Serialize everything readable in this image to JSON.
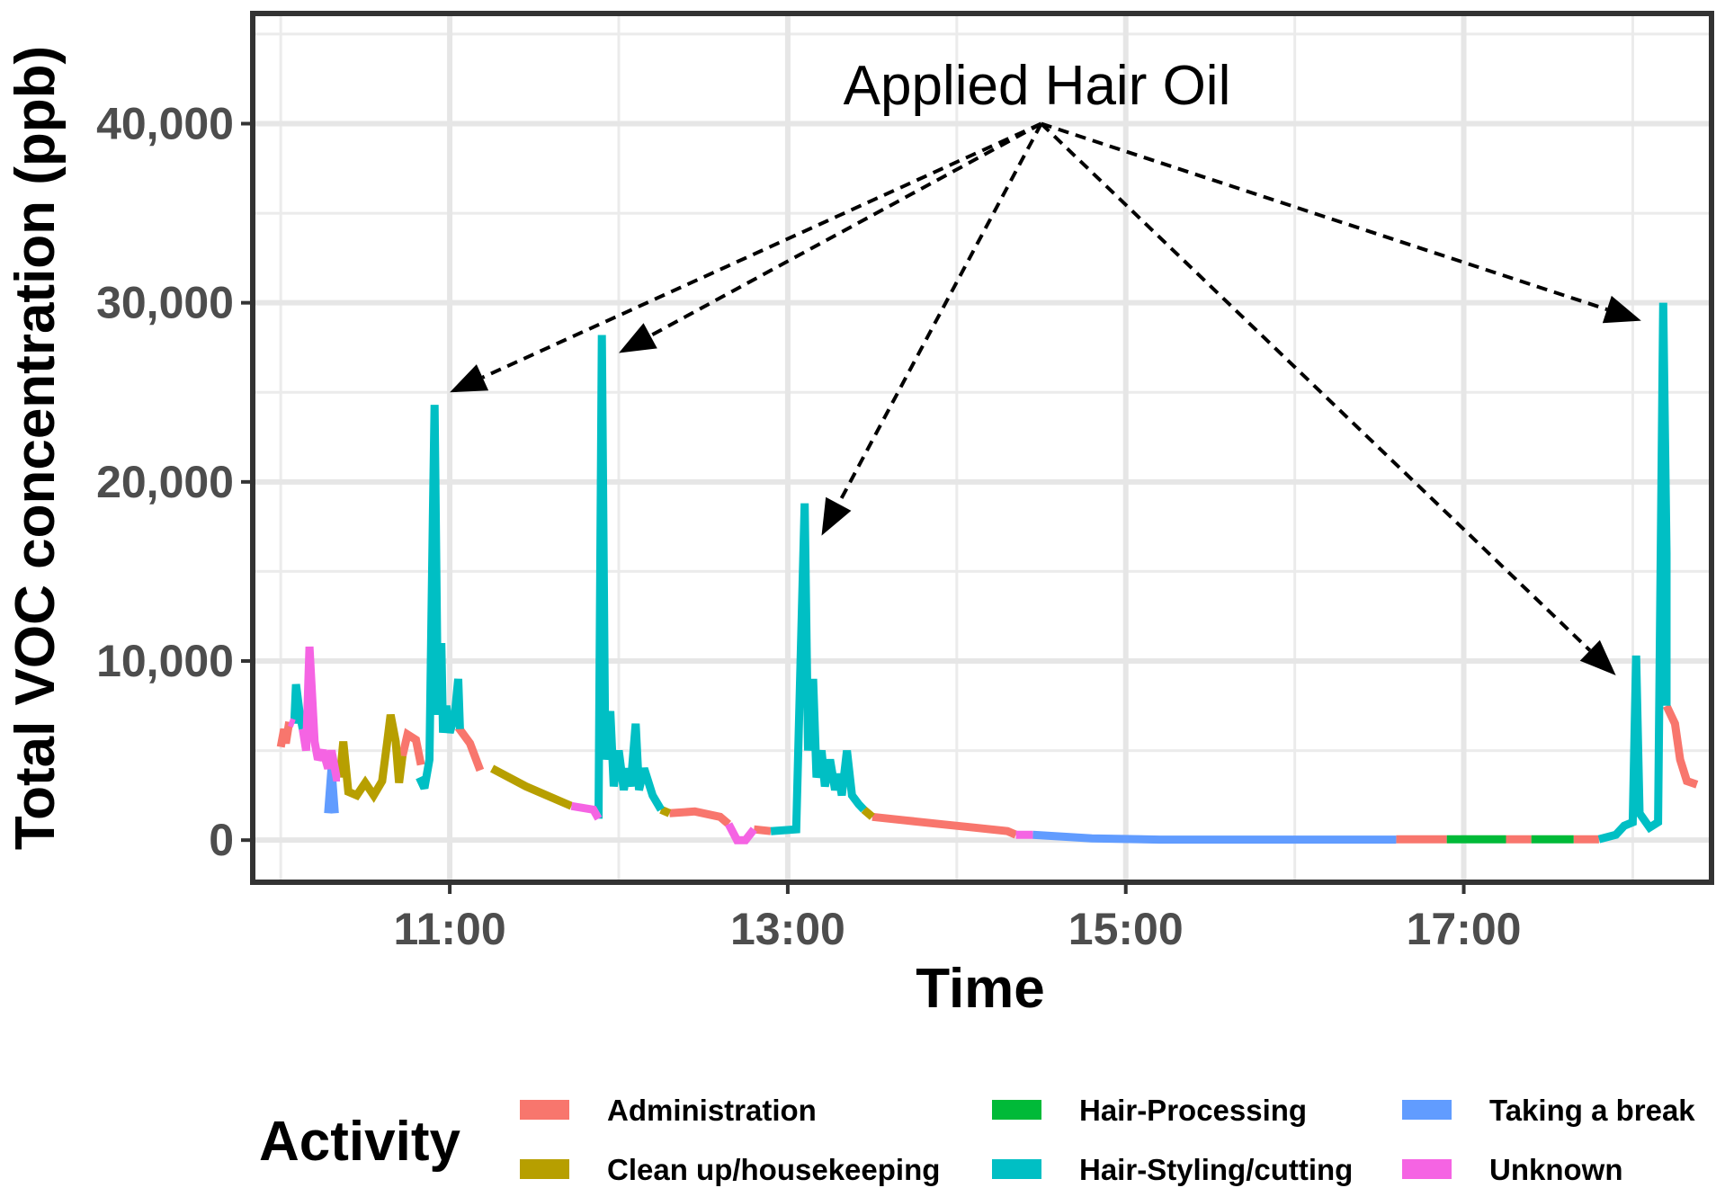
{
  "chart_data": {
    "type": "line",
    "title": "",
    "xlabel": "Time",
    "ylabel": "Total VOC concentration (ppb)",
    "x_unit": "time of day (decimal hours)",
    "xlim": [
      9.85,
      18.45
    ],
    "ylim": [
      -2200,
      46000
    ],
    "xticks": [
      11,
      13,
      15,
      17
    ],
    "xtick_labels": [
      "11:00",
      "13:00",
      "15:00",
      "17:00"
    ],
    "yticks": [
      0,
      10000,
      20000,
      30000,
      40000
    ],
    "ytick_labels": [
      "0",
      "10,000",
      "20,000",
      "30,000",
      "40,000"
    ],
    "grid": true,
    "legend": {
      "title": "Activity",
      "placement": "bottom",
      "entries": [
        "Administration",
        "Clean up/housekeeping",
        "Hair-Processing",
        "Hair-Styling/cutting",
        "Taking a break",
        "Unknown"
      ]
    },
    "annotation": {
      "text": "Applied Hair Oil",
      "anchor": [
        14.5,
        40000
      ],
      "targets": [
        [
          11.0,
          25000
        ],
        [
          12.0,
          27200
        ],
        [
          13.2,
          17000
        ],
        [
          18.05,
          29000
        ],
        [
          17.9,
          9200
        ]
      ]
    },
    "series": [
      {
        "name": "Administration",
        "color": "#F8766D",
        "segments": [
          [
            [
              10.0,
              5200
            ],
            [
              10.02,
              6200
            ],
            [
              10.03,
              5400
            ],
            [
              10.05,
              6600
            ]
          ],
          [
            [
              10.72,
              4700
            ],
            [
              10.75,
              5900
            ],
            [
              10.8,
              5600
            ],
            [
              10.83,
              4200
            ]
          ],
          [
            [
              11.05,
              6300
            ],
            [
              11.12,
              5400
            ],
            [
              11.18,
              3900
            ]
          ],
          [
            [
              12.3,
              1500
            ],
            [
              12.45,
              1600
            ],
            [
              12.6,
              1300
            ],
            [
              12.65,
              900
            ]
          ],
          [
            [
              12.8,
              600
            ],
            [
              12.9,
              500
            ]
          ],
          [
            [
              13.5,
              1300
            ],
            [
              13.7,
              1100
            ],
            [
              13.9,
              900
            ],
            [
              14.1,
              700
            ],
            [
              14.3,
              500
            ],
            [
              14.35,
              300
            ]
          ],
          [
            [
              16.6,
              50
            ],
            [
              16.8,
              50
            ],
            [
              16.9,
              50
            ]
          ],
          [
            [
              17.25,
              50
            ],
            [
              17.4,
              50
            ]
          ],
          [
            [
              17.65,
              50
            ],
            [
              17.8,
              50
            ]
          ],
          [
            [
              18.2,
              7500
            ],
            [
              18.25,
              6500
            ],
            [
              18.28,
              4500
            ],
            [
              18.32,
              3300
            ],
            [
              18.38,
              3100
            ]
          ]
        ]
      },
      {
        "name": "Clean up/housekeeping",
        "color": "#B79F00",
        "segments": [
          [
            [
              10.35,
              3500
            ],
            [
              10.37,
              5500
            ],
            [
              10.4,
              2700
            ],
            [
              10.45,
              2500
            ],
            [
              10.5,
              3200
            ],
            [
              10.55,
              2500
            ],
            [
              10.6,
              3300
            ],
            [
              10.63,
              5500
            ],
            [
              10.65,
              7000
            ],
            [
              10.68,
              5500
            ],
            [
              10.7,
              3200
            ],
            [
              10.72,
              4700
            ]
          ],
          [
            [
              11.25,
              4000
            ],
            [
              11.45,
              3000
            ],
            [
              11.72,
              1900
            ]
          ],
          [
            [
              12.25,
              1700
            ],
            [
              12.3,
              1500
            ]
          ],
          [
            [
              13.45,
              1700
            ],
            [
              13.5,
              1300
            ]
          ]
        ]
      },
      {
        "name": "Hair-Processing",
        "color": "#00BA38",
        "segments": [
          [
            [
              16.9,
              50
            ],
            [
              17.25,
              50
            ]
          ],
          [
            [
              17.4,
              50
            ],
            [
              17.65,
              50
            ]
          ]
        ]
      },
      {
        "name": "Hair-Styling/cutting",
        "color": "#00BFC4",
        "segments": [
          [
            [
              10.08,
              6500
            ],
            [
              10.09,
              8700
            ],
            [
              10.11,
              7200
            ],
            [
              10.13,
              6200
            ]
          ],
          [
            [
              10.82,
              3500
            ],
            [
              10.85,
              2900
            ],
            [
              10.88,
              4500
            ],
            [
              10.9,
              18000
            ],
            [
              10.91,
              24300
            ],
            [
              10.93,
              7000
            ],
            [
              10.95,
              11000
            ],
            [
              10.96,
              6000
            ],
            [
              10.98,
              7500
            ],
            [
              11.0,
              6000
            ],
            [
              11.03,
              7000
            ],
            [
              11.05,
              9000
            ],
            [
              11.06,
              6200
            ]
          ],
          [
            [
              11.88,
              1200
            ],
            [
              11.9,
              28200
            ],
            [
              11.92,
              4500
            ],
            [
              11.95,
              7200
            ],
            [
              11.97,
              3000
            ],
            [
              12.0,
              5000
            ],
            [
              12.03,
              2800
            ],
            [
              12.05,
              4000
            ],
            [
              12.07,
              3000
            ],
            [
              12.1,
              6500
            ],
            [
              12.12,
              2800
            ],
            [
              12.15,
              4000
            ],
            [
              12.2,
              2500
            ],
            [
              12.25,
              1700
            ]
          ],
          [
            [
              12.9,
              500
            ],
            [
              13.05,
              600
            ],
            [
              13.1,
              18800
            ],
            [
              13.12,
              5000
            ],
            [
              13.15,
              9000
            ],
            [
              13.17,
              3500
            ],
            [
              13.2,
              5000
            ],
            [
              13.22,
              3000
            ],
            [
              13.25,
              4500
            ],
            [
              13.28,
              2800
            ],
            [
              13.3,
              3700
            ],
            [
              13.32,
              2500
            ],
            [
              13.35,
              5000
            ],
            [
              13.38,
              2500
            ],
            [
              13.42,
              2000
            ],
            [
              13.45,
              1700
            ]
          ],
          [
            [
              17.8,
              50
            ],
            [
              17.9,
              300
            ],
            [
              17.95,
              800
            ],
            [
              18.0,
              1000
            ],
            [
              18.02,
              10300
            ],
            [
              18.04,
              1500
            ],
            [
              18.1,
              700
            ],
            [
              18.15,
              1000
            ],
            [
              18.18,
              30000
            ],
            [
              18.2,
              16000
            ],
            [
              18.2,
              7500
            ]
          ]
        ]
      },
      {
        "name": "Taking a break",
        "color": "#619CFF",
        "segments": [
          [
            [
              10.28,
              1500
            ],
            [
              10.3,
              4000
            ],
            [
              10.32,
              1500
            ]
          ],
          [
            [
              14.45,
              300
            ],
            [
              14.8,
              100
            ],
            [
              15.2,
              30
            ],
            [
              15.6,
              30
            ],
            [
              16.0,
              30
            ],
            [
              16.6,
              30
            ]
          ]
        ]
      },
      {
        "name": "Unknown",
        "color": "#F564E3",
        "segments": [
          [
            [
              10.05,
              6600
            ],
            [
              10.08,
              6500
            ]
          ],
          [
            [
              10.13,
              6200
            ],
            [
              10.15,
              5000
            ],
            [
              10.17,
              10800
            ],
            [
              10.2,
              5500
            ],
            [
              10.22,
              4500
            ],
            [
              10.25,
              5000
            ],
            [
              10.28,
              4000
            ],
            [
              10.3,
              5000
            ],
            [
              10.33,
              3500
            ],
            [
              10.35,
              3500
            ]
          ],
          [
            [
              11.72,
              1900
            ],
            [
              11.85,
              1700
            ],
            [
              11.88,
              1200
            ]
          ],
          [
            [
              12.65,
              900
            ],
            [
              12.7,
              0
            ],
            [
              12.75,
              0
            ],
            [
              12.8,
              600
            ]
          ],
          [
            [
              14.35,
              300
            ],
            [
              14.45,
              300
            ]
          ]
        ]
      }
    ]
  }
}
